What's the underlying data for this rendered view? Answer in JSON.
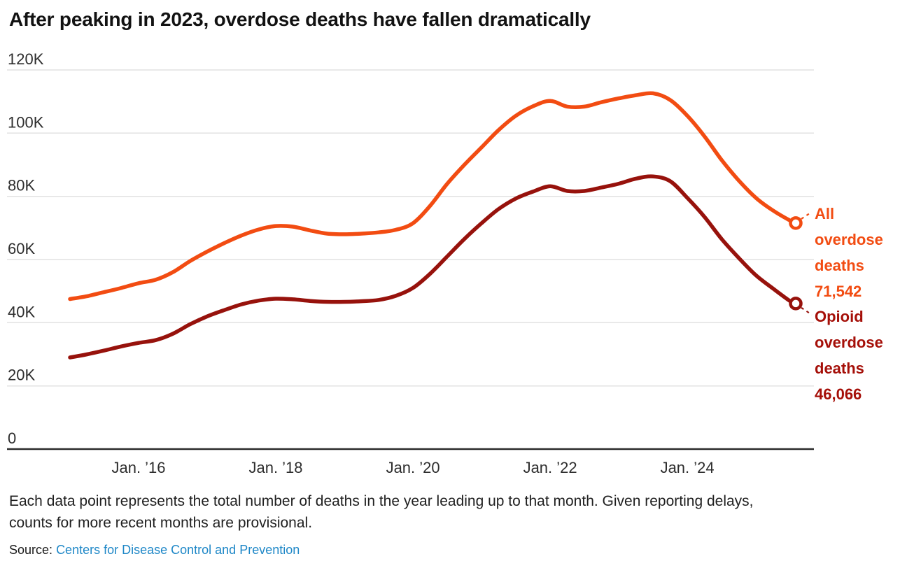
{
  "title": {
    "text": "After peaking in 2023, overdose deaths have fallen dramatically",
    "color": "#121212"
  },
  "footnote": {
    "line1": "Each data point represents the total number of deaths in the year leading up to that month. Given reporting delays,",
    "line2": "counts for more recent months are provisional."
  },
  "source": {
    "label": "Source:",
    "link_text": "Centers for Disease Control and Prevention",
    "link_color": "#1E87C7"
  },
  "chart_data": {
    "type": "line",
    "title": "After peaking in 2023, overdose deaths have fallen dramatically",
    "x_unit": "12-month period ending, decimal years",
    "y_unit": "deaths in trailing 12 months",
    "grid": "horizontal",
    "legend_position": "right-edge-annotations",
    "x": [
      2015.0,
      2015.25,
      2015.5,
      2015.75,
      2016.0,
      2016.25,
      2016.5,
      2016.75,
      2017.0,
      2017.25,
      2017.5,
      2017.75,
      2018.0,
      2018.25,
      2018.5,
      2018.75,
      2019.0,
      2019.25,
      2019.5,
      2019.75,
      2020.0,
      2020.25,
      2020.5,
      2020.75,
      2021.0,
      2021.25,
      2021.5,
      2021.75,
      2022.0,
      2022.25,
      2022.5,
      2022.75,
      2023.0,
      2023.25,
      2023.5,
      2023.75,
      2024.0,
      2024.25,
      2024.5,
      2024.75,
      2025.0,
      2025.25,
      2025.5,
      2025.58
    ],
    "series": [
      {
        "name": "All overdose deaths",
        "color": "#F24C12",
        "final_value": 71542,
        "final_value_label": "71,542",
        "annotation_lines": [
          "All",
          "overdose",
          "deaths",
          "71,542"
        ],
        "values": [
          47500,
          48400,
          49700,
          51000,
          52500,
          53600,
          56000,
          59500,
          62500,
          65200,
          67600,
          69500,
          70600,
          70400,
          69200,
          68200,
          68000,
          68200,
          68600,
          69400,
          71500,
          77000,
          84000,
          90000,
          95500,
          101000,
          105500,
          108500,
          110200,
          108400,
          108400,
          109800,
          111000,
          112000,
          112600,
          110500,
          105500,
          99000,
          91500,
          85000,
          79500,
          75500,
          72300,
          71542
        ]
      },
      {
        "name": "Opioid overdose deaths",
        "color": "#97120C",
        "text_color": "#A50F08",
        "final_value": 46066,
        "final_value_label": "46,066",
        "annotation_lines": [
          "Opioid",
          "overdose",
          "deaths",
          "46,066"
        ],
        "values": [
          29000,
          30000,
          31200,
          32500,
          33600,
          34500,
          36500,
          39500,
          42000,
          44000,
          45800,
          47000,
          47600,
          47400,
          46900,
          46600,
          46600,
          46800,
          47200,
          48500,
          51000,
          55500,
          61000,
          66500,
          71500,
          76000,
          79300,
          81500,
          83200,
          81700,
          81700,
          82800,
          84000,
          85600,
          86300,
          84800,
          79500,
          73500,
          66500,
          60500,
          55000,
          50800,
          46800,
          46066
        ]
      }
    ],
    "y_axis": {
      "min": 0,
      "max": 120000,
      "tick_values": [
        0,
        20000,
        40000,
        60000,
        80000,
        100000,
        120000
      ],
      "tick_labels": [
        "0",
        "20K",
        "40K",
        "60K",
        "80K",
        "100K",
        "120K"
      ]
    },
    "x_axis": {
      "tick_values": [
        2016,
        2018,
        2020,
        2022,
        2024
      ],
      "tick_labels": [
        "Jan. ’16",
        "Jan. ’18",
        "Jan. ’20",
        "Jan. ’22",
        "Jan. ’24"
      ]
    },
    "grid_color": "#E2E2E2",
    "axis_color": "#2B2B2B",
    "tick_text_color": "#2E2E2E"
  }
}
